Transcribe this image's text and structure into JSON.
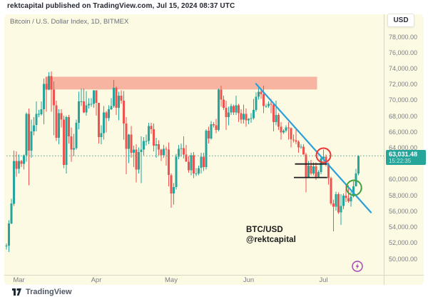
{
  "header": {
    "published_line": "rektcapital published on TradingView.com, Jul 15, 2024 08:37 UTC"
  },
  "chart": {
    "title": "Bitcoin / U.S. Dollar Index, 1D, BITMEX",
    "currency_button": "USD",
    "last_price": {
      "value": "63,031.48",
      "countdown": "15:22:35",
      "numeric": 63031.48
    },
    "price_axis_ticks": [
      {
        "value": 78000,
        "label": "78,000.00"
      },
      {
        "value": 76000,
        "label": "76,000.00"
      },
      {
        "value": 74000,
        "label": "74,000.00"
      },
      {
        "value": 72000,
        "label": "72,000.00"
      },
      {
        "value": 70000,
        "label": "70,000.00"
      },
      {
        "value": 68000,
        "label": "68,000.00"
      },
      {
        "value": 66000,
        "label": "66,000.00"
      },
      {
        "value": 64000,
        "label": "64,000.00"
      },
      {
        "value": 60000,
        "label": "60,000.00"
      },
      {
        "value": 58000,
        "label": "58,000.00"
      },
      {
        "value": 56000,
        "label": "56,000.00"
      },
      {
        "value": 54000,
        "label": "54,000.00"
      },
      {
        "value": 52000,
        "label": "52,000.00"
      },
      {
        "value": 50000,
        "label": "50,000.00"
      }
    ]
  },
  "annotation_label": {
    "line1": "BTC/USD",
    "line2": "@rektcapital"
  },
  "footer": {
    "brand": "TradingView"
  },
  "colors": {
    "background": "#fcfae2",
    "candle_up": "#26a69a",
    "candle_down": "#ef5350",
    "zone_red": "#f4a795",
    "trendline_blue": "#2b9fdb",
    "circle_red": "#ee3434",
    "circle_green": "#3da23d",
    "range_lines_black": "#1c1c1c",
    "last_price_teal": "#2fa99e",
    "badge_teal": "#26a69a",
    "boost_purple": "#a13fb8",
    "axis_line": "#d9d6c4"
  },
  "chart_data": {
    "type": "candlestick",
    "title": "Bitcoin / U.S. Dollar Index, 1D, BITMEX",
    "symbol": "BTC/USD Index",
    "interval": "1D",
    "exchange": "BITMEX",
    "units": "USD, candle values in thousands [open, high, low, close]",
    "start_date": "2024-02-25",
    "last_price": 63031.48,
    "countdown": "15:22:35",
    "y_axis": {
      "range_bottom": 48000,
      "range_top": 79300,
      "tick_step": 2000,
      "grid": "off"
    },
    "x_axis": {
      "labels_position": "month-start",
      "legend_position": "none"
    },
    "month_ticks": [
      {
        "label": "Mar",
        "index": 5
      },
      {
        "label": "Apr",
        "index": 36
      },
      {
        "label": "May",
        "index": 66
      },
      {
        "label": "Jun",
        "index": 97
      },
      {
        "label": "Jul",
        "index": 127
      }
    ],
    "candles": [
      [
        51.6,
        52.0,
        51.2,
        51.7
      ],
      [
        51.7,
        54.9,
        50.9,
        54.5
      ],
      [
        54.5,
        57.6,
        54.4,
        57.0
      ],
      [
        57.0,
        63.7,
        56.7,
        62.4
      ],
      [
        62.4,
        63.6,
        60.4,
        61.4
      ],
      [
        61.4,
        63.2,
        60.8,
        62.4
      ],
      [
        62.4,
        62.5,
        61.6,
        62.0
      ],
      [
        62.0,
        63.2,
        61.3,
        63.1
      ],
      [
        63.1,
        68.5,
        62.3,
        68.3
      ],
      [
        68.3,
        69.0,
        59.3,
        63.7
      ],
      [
        63.7,
        67.6,
        62.8,
        66.1
      ],
      [
        66.1,
        67.9,
        65.6,
        66.9
      ],
      [
        66.9,
        69.9,
        66.1,
        68.3
      ],
      [
        68.3,
        68.8,
        67.9,
        68.3
      ],
      [
        68.3,
        69.9,
        68.1,
        68.9
      ],
      [
        68.9,
        72.8,
        67.0,
        72.1
      ],
      [
        72.1,
        73.0,
        68.6,
        71.4
      ],
      [
        71.4,
        73.6,
        71.3,
        73.1
      ],
      [
        73.1,
        73.7,
        68.6,
        71.4
      ],
      [
        71.4,
        72.4,
        65.6,
        69.4
      ],
      [
        69.4,
        70.0,
        64.9,
        65.3
      ],
      [
        65.3,
        68.9,
        64.5,
        68.4
      ],
      [
        68.4,
        68.9,
        66.6,
        67.6
      ],
      [
        67.6,
        68.1,
        61.5,
        61.9
      ],
      [
        61.9,
        68.1,
        60.8,
        67.9
      ],
      [
        67.9,
        68.2,
        64.6,
        65.5
      ],
      [
        65.5,
        66.6,
        62.3,
        63.8
      ],
      [
        63.8,
        65.8,
        63.0,
        64.0
      ],
      [
        64.0,
        67.6,
        63.8,
        67.2
      ],
      [
        67.2,
        71.1,
        66.4,
        69.9
      ],
      [
        69.9,
        71.5,
        69.3,
        69.9
      ],
      [
        69.9,
        71.5,
        68.4,
        68.5
      ],
      [
        68.5,
        71.2,
        68.1,
        69.4
      ],
      [
        69.4,
        70.3,
        69.0,
        69.6
      ],
      [
        69.6,
        70.3,
        69.2,
        69.6
      ],
      [
        69.6,
        71.3,
        69.1,
        71.3
      ],
      [
        71.3,
        71.3,
        68.1,
        69.7
      ],
      [
        69.7,
        69.7,
        64.6,
        65.4
      ],
      [
        65.4,
        66.9,
        64.5,
        65.9
      ],
      [
        65.9,
        69.3,
        65.1,
        68.5
      ],
      [
        68.5,
        68.7,
        66.0,
        67.8
      ],
      [
        67.8,
        69.4,
        67.4,
        68.9
      ],
      [
        68.9,
        70.3,
        68.8,
        69.3
      ],
      [
        69.3,
        72.6,
        69.1,
        71.6
      ],
      [
        71.6,
        71.8,
        68.2,
        69.1
      ],
      [
        69.1,
        71.1,
        67.5,
        70.6
      ],
      [
        70.6,
        71.3,
        69.6,
        70.0
      ],
      [
        70.0,
        71.2,
        65.1,
        67.1
      ],
      [
        67.1,
        67.9,
        60.7,
        63.9
      ],
      [
        63.9,
        65.8,
        62.1,
        65.7
      ],
      [
        65.7,
        66.8,
        62.8,
        63.4
      ],
      [
        63.4,
        64.3,
        61.6,
        63.8
      ],
      [
        63.8,
        64.5,
        59.7,
        61.3
      ],
      [
        61.3,
        64.1,
        60.8,
        63.5
      ],
      [
        63.5,
        65.5,
        59.6,
        63.8
      ],
      [
        63.8,
        65.4,
        63.1,
        64.9
      ],
      [
        64.9,
        65.7,
        64.3,
        64.9
      ],
      [
        64.9,
        67.2,
        64.5,
        66.8
      ],
      [
        66.8,
        67.2,
        65.8,
        66.4
      ],
      [
        66.4,
        67.1,
        63.6,
        64.3
      ],
      [
        64.3,
        65.3,
        62.8,
        64.5
      ],
      [
        64.5,
        65.0,
        63.1,
        63.8
      ],
      [
        63.8,
        63.9,
        62.4,
        63.1
      ],
      [
        63.1,
        64.4,
        62.8,
        63.9
      ],
      [
        63.9,
        64.2,
        61.8,
        63.8
      ],
      [
        63.8,
        64.7,
        59.2,
        60.6
      ],
      [
        60.6,
        60.8,
        56.5,
        58.3
      ],
      [
        58.3,
        59.6,
        56.9,
        59.1
      ],
      [
        59.1,
        63.3,
        58.8,
        62.9
      ],
      [
        62.9,
        64.4,
        62.6,
        63.9
      ],
      [
        63.9,
        64.6,
        62.9,
        64.0
      ],
      [
        64.0,
        65.5,
        62.7,
        63.2
      ],
      [
        63.2,
        64.4,
        62.3,
        62.3
      ],
      [
        62.3,
        63.0,
        60.9,
        61.2
      ],
      [
        61.2,
        63.4,
        60.6,
        63.1
      ],
      [
        63.1,
        63.5,
        60.2,
        60.8
      ],
      [
        60.8,
        61.5,
        60.5,
        60.8
      ],
      [
        60.8,
        61.8,
        60.6,
        61.5
      ],
      [
        61.5,
        63.4,
        60.8,
        62.9
      ],
      [
        62.9,
        63.4,
        61.1,
        61.6
      ],
      [
        61.6,
        66.4,
        61.3,
        66.2
      ],
      [
        66.2,
        66.7,
        64.6,
        65.2
      ],
      [
        65.2,
        67.4,
        65.1,
        67.0
      ],
      [
        67.0,
        67.3,
        66.6,
        66.9
      ],
      [
        66.9,
        67.7,
        65.9,
        66.3
      ],
      [
        66.3,
        71.5,
        66.1,
        71.4
      ],
      [
        71.4,
        71.9,
        69.2,
        70.1
      ],
      [
        70.1,
        70.6,
        68.8,
        69.1
      ],
      [
        69.1,
        70.0,
        66.3,
        67.9
      ],
      [
        67.9,
        69.2,
        66.9,
        68.5
      ],
      [
        68.5,
        69.6,
        68.2,
        69.3
      ],
      [
        69.3,
        69.5,
        68.2,
        68.5
      ],
      [
        68.5,
        70.6,
        68.2,
        69.4
      ],
      [
        69.4,
        69.6,
        67.3,
        68.4
      ],
      [
        68.4,
        68.9,
        67.1,
        67.6
      ],
      [
        67.6,
        69.5,
        67.1,
        68.3
      ],
      [
        68.3,
        69.0,
        66.7,
        67.5
      ],
      [
        67.5,
        67.8,
        67.0,
        67.7
      ],
      [
        67.7,
        68.4,
        67.2,
        67.8
      ],
      [
        67.8,
        70.2,
        67.6,
        68.8
      ],
      [
        68.8,
        71.0,
        68.6,
        70.5
      ],
      [
        70.5,
        71.7,
        70.1,
        71.1
      ],
      [
        71.1,
        71.4,
        70.2,
        70.8
      ],
      [
        70.8,
        71.9,
        68.4,
        69.3
      ],
      [
        69.3,
        69.6,
        69.1,
        69.3
      ],
      [
        69.3,
        69.9,
        69.1,
        69.6
      ],
      [
        69.6,
        70.2,
        68.4,
        69.5
      ],
      [
        69.5,
        69.6,
        66.1,
        67.3
      ],
      [
        67.3,
        70.0,
        66.9,
        68.2
      ],
      [
        68.2,
        68.4,
        66.3,
        66.7
      ],
      [
        66.7,
        67.3,
        65.1,
        66.0
      ],
      [
        66.0,
        66.4,
        65.8,
        66.2
      ],
      [
        66.2,
        66.9,
        66.0,
        66.6
      ],
      [
        66.6,
        67.3,
        65.1,
        66.5
      ],
      [
        66.5,
        66.6,
        64.1,
        65.1
      ],
      [
        65.1,
        65.7,
        64.7,
        65.0
      ],
      [
        65.0,
        66.5,
        64.5,
        64.8
      ],
      [
        64.8,
        65.0,
        63.4,
        64.1
      ],
      [
        64.1,
        64.5,
        63.9,
        64.2
      ],
      [
        64.2,
        64.5,
        63.2,
        63.2
      ],
      [
        63.2,
        63.4,
        58.4,
        60.3
      ],
      [
        60.3,
        62.4,
        60.2,
        61.8
      ],
      [
        61.8,
        62.5,
        60.6,
        60.8
      ],
      [
        60.8,
        62.2,
        60.6,
        61.7
      ],
      [
        61.7,
        62.2,
        60.0,
        60.4
      ],
      [
        60.4,
        61.2,
        60.3,
        61.0
      ],
      [
        61.0,
        63.0,
        60.7,
        62.7
      ],
      [
        62.7,
        63.8,
        62.4,
        62.9
      ],
      [
        62.9,
        63.2,
        61.7,
        62.0
      ],
      [
        62.0,
        62.2,
        59.4,
        60.2
      ],
      [
        60.2,
        60.4,
        56.8,
        57.0
      ],
      [
        57.0,
        57.5,
        53.5,
        56.6
      ],
      [
        56.6,
        58.5,
        56.1,
        58.2
      ],
      [
        58.2,
        58.4,
        55.7,
        55.9
      ],
      [
        55.9,
        58.2,
        54.3,
        56.7
      ],
      [
        56.7,
        58.3,
        56.3,
        58.0
      ],
      [
        58.0,
        59.4,
        57.2,
        57.7
      ],
      [
        57.7,
        59.3,
        57.1,
        57.3
      ],
      [
        57.3,
        58.5,
        56.6,
        57.9
      ],
      [
        57.9,
        59.8,
        57.8,
        59.2
      ],
      [
        59.2,
        61.4,
        59.2,
        60.8
      ],
      [
        60.8,
        63.1,
        60.6,
        63.0
      ]
    ],
    "annotations": {
      "resistance_zone": {
        "price_top": 73.0,
        "price_bottom": 71.4,
        "from_index": 16,
        "to_index": 124
      },
      "trendline": {
        "x1_index": 100,
        "price1": 72.1,
        "x2_index": 146,
        "price2": 55.9
      },
      "range_lines": {
        "top_price": 62.0,
        "bottom_price": 60.3,
        "from_index": 116,
        "to_index": 128.5
      },
      "circle_red": {
        "index": 127,
        "price": 63.1,
        "radius_px": 10
      },
      "circle_green": {
        "index": 139.2,
        "price": 59.0,
        "radius_px": 10.5
      },
      "last_price_line": {
        "price": 63.03148,
        "style": "dotted"
      },
      "text_label": {
        "line1": "BTC/USD",
        "line2": "@rektcapital"
      }
    }
  }
}
